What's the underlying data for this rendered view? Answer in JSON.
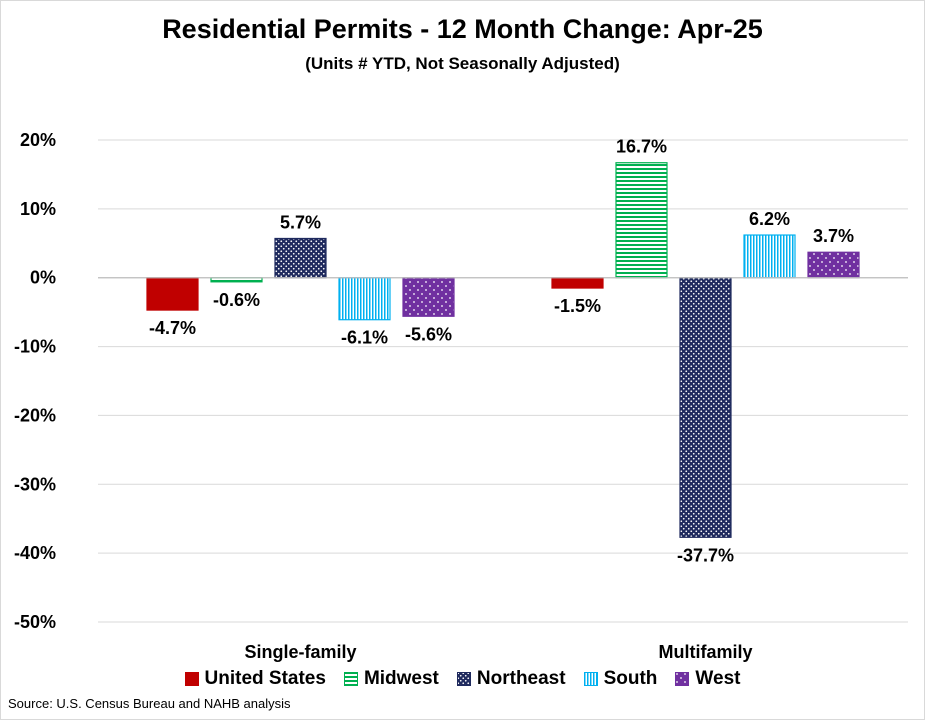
{
  "chart_data": {
    "type": "bar",
    "title": "Residential Permits - 12 Month Change:  Apr-25",
    "subtitle": "(Units # YTD, Not Seasonally Adjusted)",
    "categories": [
      "Single-family",
      "Multifamily"
    ],
    "series": [
      {
        "name": "United States",
        "values": [
          -4.7,
          -1.5
        ],
        "labels": [
          "-4.7%",
          "-1.5%"
        ],
        "color": "#c00000",
        "pattern": "solid"
      },
      {
        "name": "Midwest",
        "values": [
          -0.6,
          16.7
        ],
        "labels": [
          "-0.6%",
          "16.7%"
        ],
        "color": "#00b050",
        "pattern": "horizontal-stripes"
      },
      {
        "name": "Northeast",
        "values": [
          5.7,
          -37.7
        ],
        "labels": [
          "5.7%",
          "-37.7%"
        ],
        "color": "#1f2a5e",
        "pattern": "dense-dots"
      },
      {
        "name": "South",
        "values": [
          -6.1,
          6.2
        ],
        "labels": [
          "-6.1%",
          "6.2%"
        ],
        "color": "#00b0f0",
        "pattern": "vertical-stripes"
      },
      {
        "name": "West",
        "values": [
          -5.6,
          3.7
        ],
        "labels": [
          "-5.6%",
          "3.7%"
        ],
        "color": "#7030a0",
        "pattern": "sparse-dots"
      }
    ],
    "ylim": [
      -50,
      20
    ],
    "yticks": [
      20,
      10,
      0,
      -10,
      -20,
      -30,
      -40,
      -50
    ],
    "ytick_labels": [
      "20%",
      "10%",
      "0%",
      "-10%",
      "-20%",
      "-30%",
      "-40%",
      "-50%"
    ],
    "grid": true,
    "legend_position": "bottom"
  },
  "source": "Source: U.S. Census Bureau and NAHB analysis"
}
